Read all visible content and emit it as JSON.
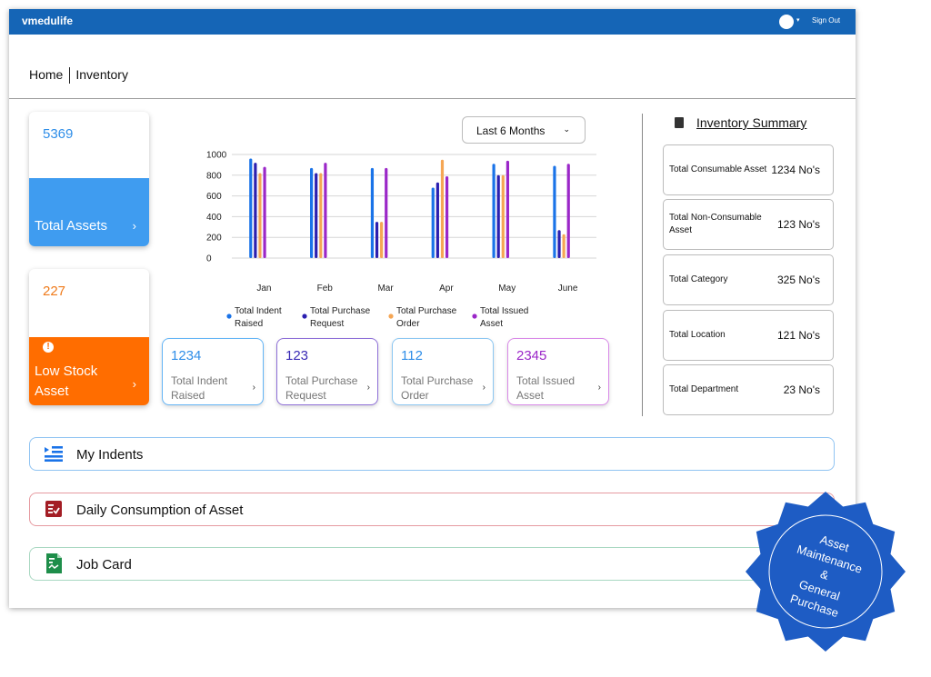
{
  "app": {
    "title": "vmedulife",
    "sign_out": "Sign Out"
  },
  "breadcrumb": {
    "home": "Home",
    "current": "Inventory"
  },
  "cards": {
    "total_assets": {
      "value": "5369",
      "label": "Total Assets",
      "chevron": "›"
    },
    "low_stock": {
      "value": "227",
      "label_line1": "Low Stock",
      "label_line2": "Asset",
      "chevron": "›",
      "icon": "!"
    }
  },
  "filter": {
    "selected": "Last 6 Months",
    "caret": "⌄"
  },
  "chart_data": {
    "type": "bar",
    "categories": [
      "Jan",
      "Feb",
      "Mar",
      "Apr",
      "May",
      "June"
    ],
    "ylim": [
      0,
      1000
    ],
    "yticks": [
      0,
      200,
      400,
      600,
      800,
      1000
    ],
    "series": [
      {
        "name": "Total Indent Raised",
        "color": "#1a73e8",
        "values": [
          960,
          870,
          870,
          680,
          910,
          890
        ]
      },
      {
        "name": "Total Purchase Request",
        "color": "#2b1fb0",
        "values": [
          920,
          820,
          350,
          730,
          800,
          270
        ]
      },
      {
        "name": "Total Purchase Order",
        "color": "#f5a654",
        "values": [
          820,
          820,
          350,
          950,
          800,
          230
        ]
      },
      {
        "name": "Total Issued Asset",
        "color": "#9b27c8",
        "values": [
          880,
          920,
          870,
          790,
          940,
          910
        ]
      }
    ],
    "legend": [
      {
        "line1": "Total Indent",
        "line2": "Raised",
        "color": "#1a73e8"
      },
      {
        "line1": "Total Purchase",
        "line2": "Request",
        "color": "#2b1fb0"
      },
      {
        "line1": "Total Purchase",
        "line2": "Order",
        "color": "#f5a654"
      },
      {
        "line1": "Total Issued",
        "line2": "Asset",
        "color": "#9b27c8"
      }
    ],
    "grid": true,
    "legend_position": "bottom"
  },
  "mini_cards": [
    {
      "value": "1234",
      "line1": "Total Indent",
      "line2": "Raised",
      "color": "#2f8ee8",
      "border": "#64b5f6"
    },
    {
      "value": "123",
      "line1": "Total Purchase",
      "line2": "Request",
      "color": "#3a2bb5",
      "border": "#8e6fd8"
    },
    {
      "value": "112",
      "line1": "Total Purchase",
      "line2": "Order",
      "color": "#2f8ee8",
      "border": "#8cc7f2"
    },
    {
      "value": "2345",
      "line1": "Total Issued",
      "line2": "Asset",
      "color": "#9b27c8",
      "border": "#d98ae8"
    }
  ],
  "summary": {
    "title": "Inventory Summary",
    "items": [
      {
        "label": "Total Consumable Asset",
        "value": "1234 No's"
      },
      {
        "label": "Total Non-Consumable Asset",
        "value": "123 No's"
      },
      {
        "label": "Total Category",
        "value": "325 No's"
      },
      {
        "label": "Total Location",
        "value": "121 No's"
      },
      {
        "label": "Total Department",
        "value": "23 No's"
      }
    ]
  },
  "sections": [
    {
      "label": "My Indents",
      "border": "#90c4f2",
      "icon": "list-indent-icon"
    },
    {
      "label": "Daily Consumption of Asset",
      "border": "#e69aa0",
      "icon": "checklist-icon"
    },
    {
      "label": "Job Card",
      "border": "#a9d8c2",
      "icon": "spreadsheet-icon"
    }
  ],
  "seal": {
    "line1": "Asset",
    "line2": "Maintenance",
    "line3": "&",
    "line4": "General",
    "line5": "Purchase"
  },
  "colors": {
    "topbar": "#1565b6",
    "assets": "#3f9cf0",
    "low_stock": "#ff6d00",
    "seal": "#1e5cc4"
  }
}
